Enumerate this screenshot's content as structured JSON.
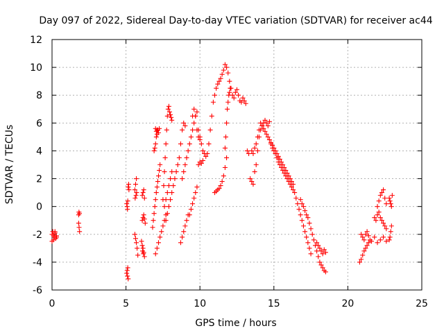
{
  "chart_data": {
    "type": "scatter",
    "title": "Day 097 of 2022, Sidereal Day-to-day VTEC variation (SDTVAR) for receiver ac44",
    "xlabel": "GPS time / hours",
    "ylabel": "SDTVAR / TECUs",
    "xlim": [
      0,
      25
    ],
    "ylim": [
      -6,
      12
    ],
    "xticks": [
      0,
      5,
      10,
      15,
      20,
      25
    ],
    "yticks": [
      -6,
      -4,
      -2,
      0,
      2,
      4,
      6,
      8,
      10,
      12
    ],
    "grid": true,
    "marker": "plus",
    "color": "#ff0000",
    "series": [
      {
        "name": "SDTVAR",
        "x": [
          0.0,
          0.05,
          0.1,
          0.15,
          0.2,
          0.25,
          0.3,
          0.0,
          0.1,
          0.2,
          0.3,
          1.8,
          1.82,
          1.85,
          1.8,
          1.83,
          1.86,
          5.05,
          5.08,
          5.1,
          5.12,
          5.15,
          5.05,
          5.08,
          5.1,
          5.12,
          5.2,
          5.15,
          5.18,
          5.6,
          5.65,
          5.7,
          5.75,
          5.8,
          5.6,
          5.65,
          5.7,
          5.62,
          5.68,
          5.72,
          6.1,
          6.15,
          6.2,
          6.25,
          6.3,
          6.1,
          6.15,
          6.2,
          6.25,
          6.12,
          6.18,
          6.05,
          6.1,
          6.15,
          6.2,
          6.25,
          6.8,
          6.85,
          6.9,
          6.95,
          7.0,
          7.05,
          7.1,
          7.15,
          7.2,
          7.25,
          7.3,
          6.9,
          6.95,
          7.0,
          7.05,
          7.1,
          7.0,
          7.05,
          7.1,
          7.15,
          7.2,
          7.25,
          7.0,
          7.1,
          7.2,
          7.3,
          7.4,
          7.5,
          7.6,
          7.7,
          7.5,
          7.55,
          7.6,
          7.65,
          7.7,
          7.75,
          7.8,
          7.85,
          7.9,
          7.95,
          8.0,
          8.05,
          8.1,
          7.6,
          7.7,
          7.8,
          7.9,
          8.0,
          8.1,
          7.7,
          7.8,
          7.9,
          8.0,
          8.1,
          8.2,
          8.3,
          8.4,
          8.5,
          8.6,
          8.7,
          8.8,
          8.9,
          9.0,
          8.7,
          8.8,
          8.9,
          9.0,
          9.1,
          9.2,
          8.8,
          8.9,
          9.0,
          9.1,
          9.2,
          9.3,
          9.4,
          9.5,
          9.6,
          9.7,
          9.8,
          9.9,
          10.0,
          9.3,
          9.4,
          9.5,
          9.6,
          9.7,
          9.8,
          9.9,
          10.0,
          10.1,
          10.2,
          9.5,
          9.6,
          9.7,
          9.8,
          9.9,
          10.0,
          10.1,
          10.2,
          10.3,
          10.4,
          10.5,
          10.6,
          10.7,
          10.8,
          10.9,
          11.0,
          11.1,
          11.2,
          11.3,
          11.4,
          11.5,
          11.6,
          11.7,
          11.8,
          11.9,
          12.0,
          12.1,
          12.2,
          12.3,
          12.4,
          12.5,
          12.6,
          12.7,
          11.0,
          11.1,
          11.2,
          11.3,
          11.4,
          11.5,
          11.6,
          11.7,
          11.8,
          11.7,
          11.75,
          11.8,
          11.85,
          11.9,
          11.95,
          12.0,
          12.05,
          12.8,
          12.9,
          13.0,
          13.1,
          13.2,
          13.3,
          13.4,
          13.5,
          13.6,
          13.7,
          13.8,
          13.9,
          14.0,
          14.1,
          14.2,
          14.3,
          14.4,
          14.5,
          14.6,
          14.7,
          13.5,
          13.6,
          13.7,
          13.8,
          13.9,
          14.0,
          14.1,
          14.2,
          14.3,
          14.4,
          14.5,
          14.6,
          14.7,
          14.8,
          14.9,
          15.0,
          15.1,
          15.2,
          15.3,
          15.4,
          15.5,
          15.6,
          15.7,
          15.8,
          15.9,
          16.0,
          16.1,
          16.2,
          16.3,
          14.8,
          14.9,
          15.0,
          15.1,
          15.2,
          15.3,
          15.4,
          15.5,
          15.6,
          15.7,
          15.8,
          15.9,
          16.0,
          16.1,
          16.2,
          16.3,
          16.4,
          16.5,
          16.6,
          16.7,
          16.8,
          16.9,
          17.0,
          17.1,
          17.2,
          17.3,
          17.4,
          17.5,
          16.8,
          16.9,
          17.0,
          17.1,
          17.2,
          17.3,
          17.4,
          17.5,
          17.6,
          17.7,
          17.8,
          17.9,
          18.0,
          18.1,
          18.2,
          18.3,
          18.4,
          18.5,
          17.9,
          18.0,
          18.1,
          18.2,
          18.3,
          18.4,
          18.5,
          20.8,
          20.9,
          21.0,
          21.1,
          21.2,
          21.3,
          21.4,
          21.5,
          20.9,
          21.0,
          21.1,
          21.2,
          21.3,
          21.4,
          21.6,
          21.8,
          22.0,
          22.2,
          22.4,
          22.6,
          21.8,
          21.9,
          22.0,
          22.1,
          22.2,
          22.3,
          22.4,
          22.5,
          22.6,
          22.0,
          22.1,
          22.2,
          22.3,
          22.4,
          22.5,
          22.6,
          22.8,
          22.85,
          22.9,
          22.95,
          23.0,
          22.8,
          22.85,
          22.9,
          22.95
        ],
        "y": [
          -2.0,
          -1.8,
          -2.1,
          -2.2,
          -1.9,
          -2.3,
          -2.1,
          -2.5,
          -2.4,
          -1.8,
          -2.2,
          -0.6,
          -0.4,
          -0.5,
          -1.2,
          -1.5,
          -1.8,
          -4.8,
          -4.6,
          -5.0,
          -4.4,
          -5.2,
          0.2,
          0.0,
          -0.2,
          0.4,
          1.2,
          1.4,
          1.6,
          -2.0,
          -2.3,
          -2.6,
          -3.0,
          -3.5,
          1.2,
          1.6,
          2.0,
          0.6,
          0.8,
          1.0,
          -1.0,
          -0.8,
          -0.6,
          -0.9,
          -1.2,
          0.8,
          1.0,
          1.2,
          0.6,
          -3.2,
          -3.4,
          -2.5,
          -2.8,
          -3.0,
          -3.3,
          -3.6,
          -1.5,
          -1.0,
          -0.5,
          0.0,
          0.5,
          1.0,
          1.4,
          1.8,
          2.2,
          2.6,
          3.0,
          4.0,
          4.2,
          4.5,
          5.0,
          5.5,
          5.6,
          5.4,
          5.2,
          5.5,
          5.3,
          5.6,
          -3.4,
          -3.0,
          -2.6,
          -2.2,
          -1.8,
          -1.4,
          -1.0,
          -0.6,
          0.5,
          1.5,
          2.5,
          3.5,
          4.5,
          5.5,
          6.5,
          7.0,
          7.2,
          6.8,
          6.6,
          6.4,
          6.2,
          0.0,
          0.5,
          1.0,
          1.5,
          2.0,
          2.5,
          -1.0,
          -0.5,
          0.0,
          0.5,
          1.0,
          1.5,
          2.0,
          2.5,
          3.0,
          3.5,
          4.5,
          5.5,
          6.0,
          5.8,
          -2.6,
          -2.2,
          -1.8,
          -1.4,
          -1.0,
          -0.6,
          2.0,
          2.5,
          3.0,
          3.5,
          4.0,
          4.5,
          5.0,
          5.5,
          6.0,
          6.5,
          6.8,
          5.5,
          5.0,
          -0.6,
          -0.2,
          0.2,
          0.6,
          1.0,
          1.4,
          3.0,
          3.2,
          3.1,
          3.3,
          6.5,
          7.0,
          6.5,
          5.5,
          5.0,
          4.8,
          4.5,
          4.0,
          3.8,
          3.6,
          3.8,
          4.5,
          5.5,
          6.5,
          7.5,
          8.0,
          8.5,
          8.8,
          9.0,
          9.2,
          9.5,
          9.8,
          10.2,
          10.0,
          9.6,
          9.0,
          8.5,
          8.0,
          7.8,
          8.2,
          8.4,
          8.0,
          7.6,
          1.0,
          1.1,
          1.2,
          1.3,
          1.5,
          1.8,
          2.2,
          2.8,
          3.5,
          4.2,
          5.0,
          6.0,
          7.0,
          7.5,
          8.0,
          8.2,
          8.5,
          7.5,
          7.8,
          7.6,
          7.4,
          4.0,
          3.8,
          2.0,
          1.8,
          1.6,
          2.5,
          3.0,
          4.0,
          5.0,
          5.5,
          5.8,
          6.0,
          6.2,
          6.0,
          5.8,
          6.1,
          4.0,
          3.8,
          4.2,
          4.5,
          5.0,
          5.5,
          6.0,
          5.8,
          5.6,
          5.4,
          5.2,
          5.0,
          4.8,
          4.6,
          4.4,
          4.2,
          4.0,
          3.8,
          3.6,
          3.4,
          3.2,
          3.0,
          2.8,
          2.6,
          2.4,
          2.2,
          2.0,
          1.8,
          1.6,
          4.5,
          4.2,
          4.0,
          3.8,
          3.5,
          3.2,
          3.0,
          2.8,
          2.6,
          2.4,
          2.2,
          2.0,
          1.8,
          1.6,
          1.4,
          1.2,
          1.0,
          0.6,
          0.2,
          -0.2,
          -0.6,
          -1.0,
          -1.4,
          -1.8,
          -2.2,
          -2.6,
          -3.0,
          -3.4,
          0.5,
          0.2,
          0.0,
          -0.3,
          -0.6,
          -0.8,
          -1.2,
          -1.6,
          -2.0,
          -2.4,
          -2.8,
          -3.2,
          -3.6,
          -4.0,
          -4.2,
          -4.4,
          -4.6,
          -4.7,
          -2.6,
          -2.8,
          -3.0,
          -3.2,
          -3.4,
          -3.1,
          -3.3,
          -4.0,
          -3.8,
          -3.5,
          -3.2,
          -3.0,
          -2.8,
          -2.6,
          -2.4,
          -2.0,
          -2.2,
          -2.4,
          -2.0,
          -1.8,
          -2.1,
          -2.5,
          -2.2,
          -2.6,
          -2.4,
          -2.2,
          -2.5,
          -0.8,
          -1.0,
          -0.6,
          -0.4,
          -0.8,
          -1.0,
          -1.2,
          -1.4,
          -1.6,
          0.0,
          0.4,
          0.8,
          1.0,
          1.2,
          0.6,
          0.2,
          0.6,
          0.4,
          0.2,
          0.0,
          0.8,
          -2.4,
          -2.2,
          -1.8,
          -1.4
        ]
      }
    ]
  }
}
